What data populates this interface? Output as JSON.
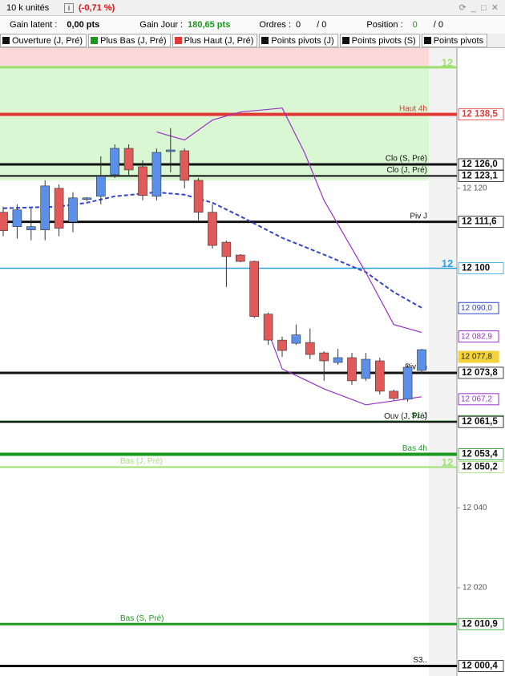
{
  "toolbar": {
    "size": "10 k unités",
    "change": "(-0,71 %)"
  },
  "stats": {
    "latent_label": "Gain latent :",
    "latent": "0,00 pts",
    "day_label": "Gain Jour :",
    "day": "180,65 pts",
    "orders_label": "Ordres :",
    "orders": "0",
    "orders_total": "/ 0",
    "position_label": "Position :",
    "position": "0",
    "position_total": "/ 0"
  },
  "tabs": [
    {
      "label": "Ouverture (J, Pré)",
      "color": "#111111"
    },
    {
      "label": "Plus Bas (J, Pré)",
      "color": "#1a9a1a"
    },
    {
      "label": "Plus Haut (J, Pré)",
      "color": "#e53935"
    },
    {
      "label": "Points pivots (J)",
      "color": "#111111"
    },
    {
      "label": "Points pivots (S)",
      "color": "#111111"
    },
    {
      "label": "Points pivots",
      "color": "#111111"
    }
  ],
  "chart_data": {
    "type": "candlestick",
    "ylim": [
      11997.9,
      12155.1
    ],
    "yticks": [
      {
        "value": 12120,
        "label": "12 120"
      },
      {
        "value": 12040,
        "label": "12 040"
      },
      {
        "value": 12020,
        "label": "12 020"
      }
    ],
    "up_color": "#5b8fe8",
    "down_color": "#e05a5a",
    "open": [
      12114.0,
      12110.4,
      12109.6,
      12109.6,
      12120.0,
      12111.6,
      12117.2,
      12118.0,
      12123.4,
      12130.0,
      12125.4,
      12118.0,
      12129.2,
      12129.4,
      12122.0,
      12114.0,
      12106.5,
      12103.3,
      12101.7,
      12088.5,
      12082.0,
      12081.2,
      12081.4,
      12078.8,
      12076.4,
      12077.6,
      12072.4,
      12076.8,
      12069.2,
      12067.2,
      12074.4
    ],
    "high": [
      12115.4,
      12116.0,
      12115.0,
      12122.0,
      12121.0,
      12119.0,
      12117.8,
      12128.0,
      12131.0,
      12131.0,
      12127.0,
      12130.0,
      12135.1,
      12130.0,
      12122.6,
      12116.0,
      12106.9,
      12103.5,
      12101.9,
      12088.9,
      12082.9,
      12085.9,
      12084.9,
      12079.2,
      12079.8,
      12078.8,
      12078.8,
      12077.6,
      12069.6,
      12075.8,
      12079.8
    ],
    "low": [
      12108.0,
      12107.4,
      12107.0,
      12107.0,
      12108.0,
      12109.0,
      12116.8,
      12116.0,
      12122.6,
      12123.0,
      12117.0,
      12117.0,
      12124.0,
      12120.0,
      12112.0,
      12104.9,
      12095.3,
      12101.5,
      12087.5,
      12080.8,
      12077.8,
      12080.8,
      12077.2,
      12071.8,
      12075.8,
      12070.8,
      12071.8,
      12068.4,
      12067.0,
      12066.6,
      12073.6
    ],
    "close": [
      12109.4,
      12114.6,
      12110.4,
      12120.6,
      12110.0,
      12117.6,
      12117.6,
      12123.0,
      12130.0,
      12124.6,
      12118.2,
      12129.0,
      12129.6,
      12122.0,
      12114.0,
      12105.7,
      12102.9,
      12101.7,
      12087.9,
      12082.0,
      12079.4,
      12083.3,
      12078.4,
      12076.8,
      12077.6,
      12071.8,
      12077.2,
      12069.2,
      12067.4,
      12075.2,
      12079.6
    ],
    "indicators": [
      {
        "color": "#3344cc",
        "dashed": true,
        "x": [
          0,
          4,
          6,
          8,
          11,
          13,
          15,
          17,
          20,
          23,
          26,
          28,
          30
        ],
        "values": [
          12115.0,
          12115.4,
          12116.4,
          12118.0,
          12119.0,
          12118.4,
          12116.4,
          12113.0,
          12107.6,
          12103.4,
          12099.0,
          12094.0,
          12090.1
        ]
      },
      {
        "color": "#9b30c8",
        "dashed": false,
        "x": [
          11,
          13,
          15,
          17,
          20,
          21.6,
          23,
          26,
          28,
          30
        ],
        "values": [
          12134.1,
          12132.1,
          12137.1,
          12139.1,
          12140.1,
          12129.0,
          12117.0,
          12098.9,
          12085.9,
          12083.9
        ]
      },
      {
        "color": "#9b30c8",
        "dashed": false,
        "x": [
          18.7,
          20,
          23,
          26,
          28,
          30
        ],
        "values": [
          12086.9,
          12074.8,
          12069.8,
          12065.8,
          12066.8,
          12067.8
        ]
      }
    ],
    "levels": [
      {
        "value": 12150.3,
        "color": "#9ee070",
        "tag": "12",
        "width": 3
      },
      {
        "name": "Haut 4h",
        "value": 12138.5,
        "value_label": "12 138,5",
        "color": "#e53935",
        "width": 4
      },
      {
        "name": "Clo (S, Pré)",
        "value": 12126.0,
        "value_label": "12 126,0",
        "color": "#111111",
        "width": 3
      },
      {
        "name": "Clo (J, Pré)",
        "value": 12123.1,
        "value_label": "12 123,1",
        "color": "#111111",
        "width": 2
      },
      {
        "name": "Piv J",
        "value": 12111.6,
        "value_label": "12 111,6",
        "color": "#111111",
        "width": 3
      },
      {
        "value": 12100,
        "value_label": "12 100",
        "color": "#29a3e0",
        "tag": "12",
        "width": 1.5
      },
      {
        "name": "Piv 4h",
        "value": 12073.8,
        "value_label": "12 073,8",
        "color": "#111111",
        "width": 3
      },
      {
        "name": "S1 J",
        "value": 12061.7,
        "value_label": "12 061,7",
        "color": "#1a7a1a",
        "width": 1.5
      },
      {
        "name": "Ouv (J, Pré)",
        "value": 12061.5,
        "value_label": "12 061,5",
        "color": "#111111",
        "width": 2
      },
      {
        "name": "Bas 4h",
        "value": 12053.4,
        "value_label": "12 053,4",
        "color": "#1a9a1a",
        "width": 4
      },
      {
        "name": "Bas (J, Pré)",
        "value": 12050.2,
        "value_label": "12 050,2",
        "color": "#9ee070",
        "tag": "12",
        "width": 2,
        "name_position": "center"
      },
      {
        "name": "Bas (S, Pré)",
        "value": 12010.9,
        "value_label": "12 010,9",
        "color": "#1a9a1a",
        "width": 3,
        "name_position": "center"
      },
      {
        "name": "S3..",
        "value": 12000.4,
        "value_label": "12 000,4",
        "color": "#111111",
        "width": 3
      }
    ],
    "tags": [
      {
        "value": 12090.0,
        "label": "12 090,0",
        "color": "#3344cc"
      },
      {
        "value": 12082.9,
        "label": "12 082,9",
        "color": "#9b30c8"
      },
      {
        "value": 12077.8,
        "label": "12 077,8",
        "color": "#f3d23a"
      },
      {
        "value": 12067.2,
        "label": "12 067,2",
        "color": "#9b30c8"
      }
    ]
  }
}
